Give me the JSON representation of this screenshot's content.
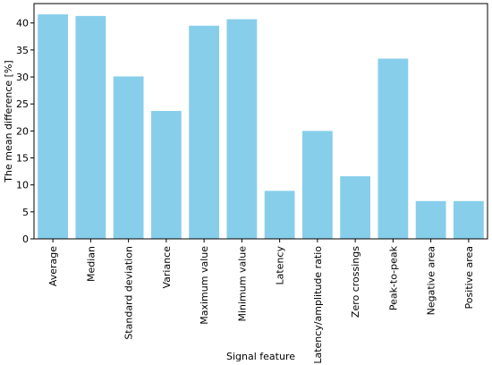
{
  "chart_data": {
    "type": "bar",
    "title": "",
    "xlabel": "Signal feature",
    "ylabel": "The mean difference [%]",
    "categories": [
      "Average",
      "Median",
      "Standard deviation",
      "Variance",
      "Maximum value",
      "Minimum value",
      "Latency",
      "Latency/amplitude ratio",
      "Zero crossings",
      "Peak-to-peak",
      "Negative area",
      "Positive area"
    ],
    "values": [
      41.6,
      41.3,
      30.1,
      23.7,
      39.5,
      40.7,
      8.9,
      20.0,
      11.6,
      33.4,
      7.0,
      7.0
    ],
    "ylim": [
      0,
      43.6
    ],
    "yticks": [
      0,
      5,
      10,
      15,
      20,
      25,
      30,
      35,
      40
    ],
    "grid": false,
    "bar_color": "#87ceeb"
  }
}
